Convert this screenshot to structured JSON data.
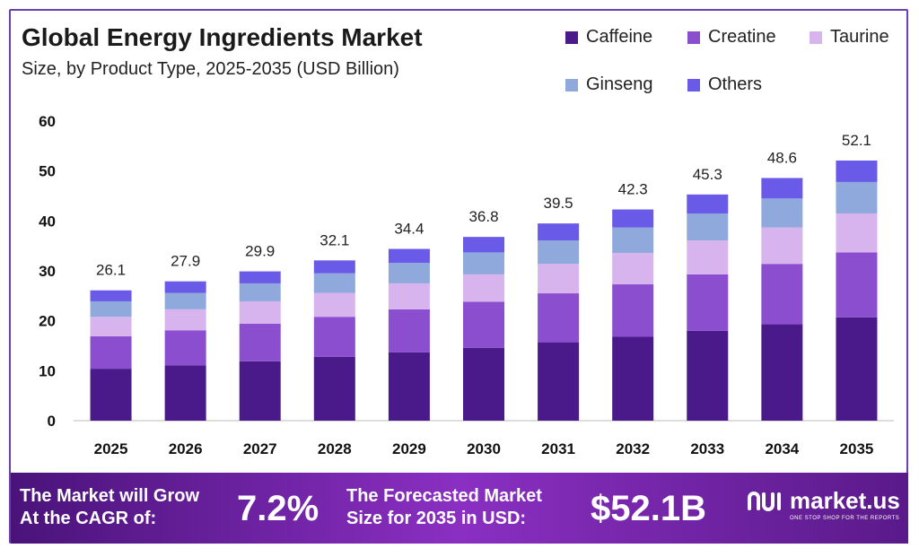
{
  "header": {
    "title": "Global Energy Ingredients Market",
    "subtitle": "Size, by Product Type, 2025-2035 (USD Billion)"
  },
  "colors": {
    "Caffeine": "#4a1a8a",
    "Creatine": "#8a4ecf",
    "Taurine": "#d7b4ee",
    "Ginseng": "#8fa9dc",
    "Others": "#6a5ae8"
  },
  "chart_data": {
    "type": "bar",
    "stacked": true,
    "categories": [
      "2025",
      "2026",
      "2027",
      "2028",
      "2029",
      "2030",
      "2031",
      "2032",
      "2033",
      "2034",
      "2035"
    ],
    "series": [
      {
        "name": "Caffeine",
        "values": [
          10.4,
          11.1,
          11.9,
          12.8,
          13.7,
          14.6,
          15.7,
          16.8,
          18.0,
          19.3,
          20.7
        ]
      },
      {
        "name": "Creatine",
        "values": [
          6.5,
          7.0,
          7.5,
          8.0,
          8.6,
          9.2,
          9.8,
          10.5,
          11.3,
          12.1,
          13.0
        ]
      },
      {
        "name": "Taurine",
        "values": [
          3.9,
          4.2,
          4.5,
          4.8,
          5.2,
          5.5,
          5.9,
          6.3,
          6.8,
          7.3,
          7.8
        ]
      },
      {
        "name": "Ginseng",
        "values": [
          3.1,
          3.3,
          3.6,
          3.9,
          4.1,
          4.4,
          4.7,
          5.1,
          5.4,
          5.8,
          6.3
        ]
      },
      {
        "name": "Others",
        "values": [
          2.2,
          2.3,
          2.4,
          2.6,
          2.8,
          3.1,
          3.4,
          3.6,
          3.8,
          4.1,
          4.3
        ]
      }
    ],
    "totals": [
      "26.1",
      "27.9",
      "29.9",
      "32.1",
      "34.4",
      "36.8",
      "39.5",
      "42.3",
      "45.3",
      "48.6",
      "52.1"
    ],
    "yticks": [
      "0",
      "10",
      "20",
      "30",
      "40",
      "50",
      "60"
    ],
    "ylim": [
      0,
      60
    ],
    "legend_position": "top-right",
    "grid": false
  },
  "footer": {
    "cagr_label_line1": "The Market will Grow",
    "cagr_label_line2": "At the CAGR of:",
    "cagr_value": "7.2%",
    "forecast_label_line1": "The Forecasted Market",
    "forecast_label_line2": "Size for 2035 in USD:",
    "forecast_value": "$52.1B",
    "brand_name": "market.us",
    "brand_tagline": "ONE STOP SHOP FOR THE REPORTS"
  }
}
